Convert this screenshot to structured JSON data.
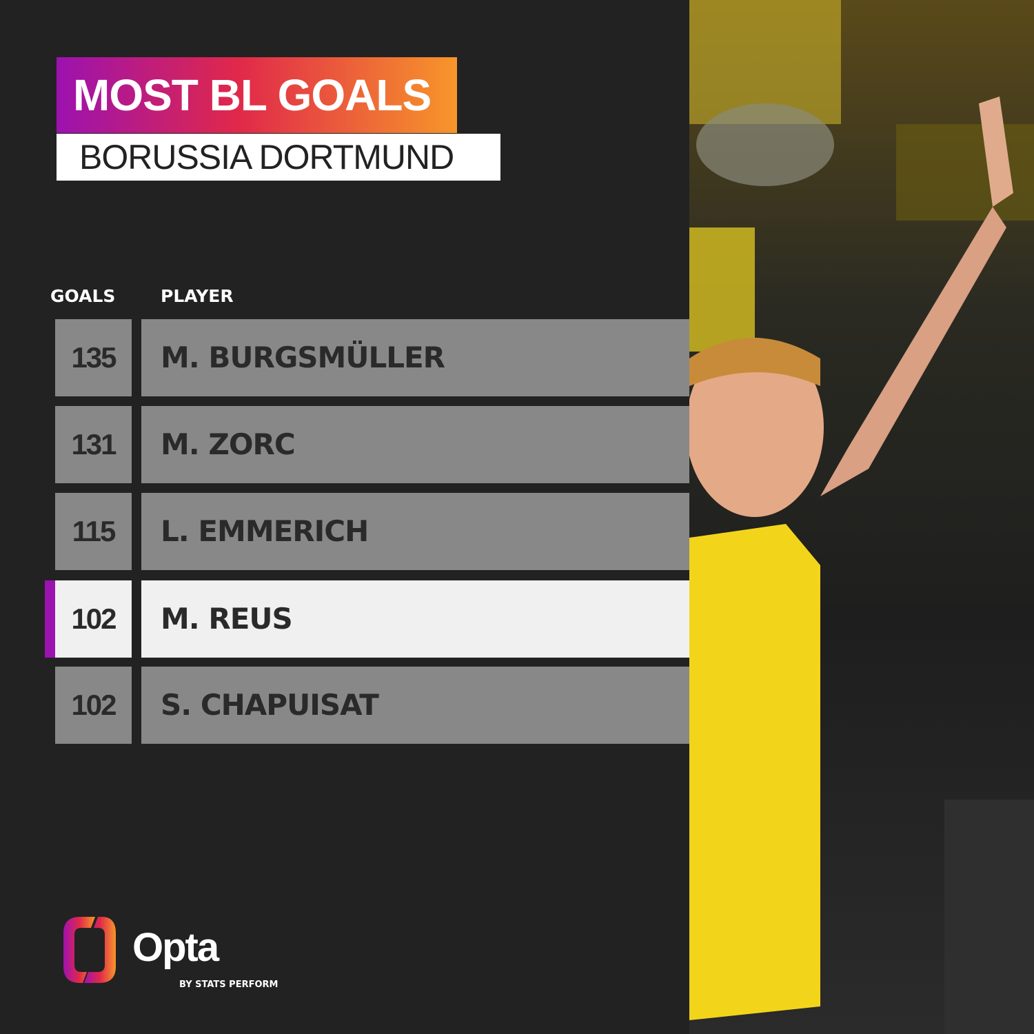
{
  "header": {
    "title": "MOST BL GOALS",
    "subtitle": "BORUSSIA DORTMUND"
  },
  "table": {
    "columns": [
      "GOALS",
      "PLAYER"
    ],
    "rows": [
      {
        "goals": "135",
        "player": "M. BURGSMÜLLER",
        "highlighted": false
      },
      {
        "goals": "131",
        "player": "M. ZORC",
        "highlighted": false
      },
      {
        "goals": "115",
        "player": "L. EMMERICH",
        "highlighted": false
      },
      {
        "goals": "102",
        "player": "M. REUS",
        "highlighted": true
      },
      {
        "goals": "102",
        "player": "S. CHAPUISAT",
        "highlighted": false
      }
    ]
  },
  "logo": {
    "name": "Opta",
    "tagline": "BY STATS PERFORM"
  },
  "colors": {
    "background": "#222222",
    "highlight": "#9c12b0",
    "gradient_start": "#9c12b0",
    "gradient_end": "#f7962a",
    "row": "#888888",
    "row_highlight": "#f0f0f0"
  }
}
